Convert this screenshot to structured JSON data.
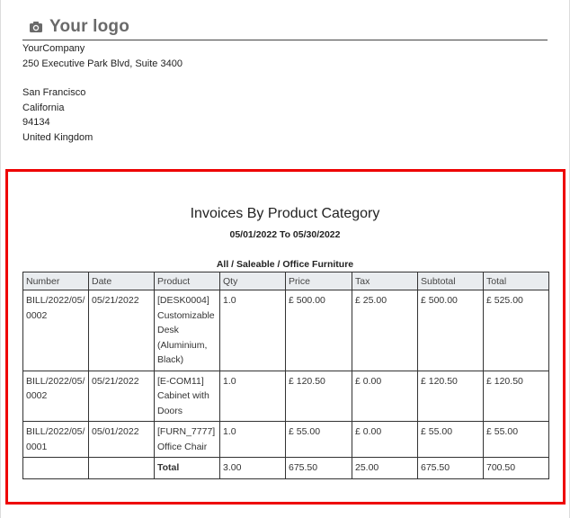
{
  "header": {
    "logo_text": "Your logo",
    "company_name": "YourCompany",
    "company_street": "250 Executive Park Blvd, Suite 3400",
    "address_lines": [
      "San Francisco",
      "California",
      "94134",
      "United Kingdom"
    ]
  },
  "report": {
    "title": "Invoices By Product Category",
    "date_range": "05/01/2022 To 05/30/2022",
    "category_path": "All / Saleable / Office Furniture",
    "columns": [
      "Number",
      "Date",
      "Product",
      "Qty",
      "Price",
      "Tax",
      "Subtotal",
      "Total"
    ],
    "rows": [
      [
        "BILL/2022/05/0002",
        "05/21/2022",
        "[DESK0004] Customizable Desk (Aluminium, Black)",
        "1.0",
        "£ 500.00",
        "£ 25.00",
        "£ 500.00",
        "£ 525.00"
      ],
      [
        "BILL/2022/05/0002",
        "05/21/2022",
        "[E-COM11] Cabinet with Doors",
        "1.0",
        "£ 120.50",
        "£ 0.00",
        "£ 120.50",
        "£ 120.50"
      ],
      [
        "BILL/2022/05/0001",
        "05/01/2022",
        "[FURN_7777] Office Chair",
        "1.0",
        "£ 55.00",
        "£ 0.00",
        "£ 55.00",
        "£ 55.00"
      ]
    ],
    "totals": [
      "",
      "",
      "Total",
      "3.00",
      "675.50",
      "25.00",
      "675.50",
      "700.50"
    ]
  },
  "colors": {
    "highlight_border": "#ee0000",
    "header_background": "#e9ecef"
  },
  "icons": {
    "logo": "camera-icon"
  }
}
